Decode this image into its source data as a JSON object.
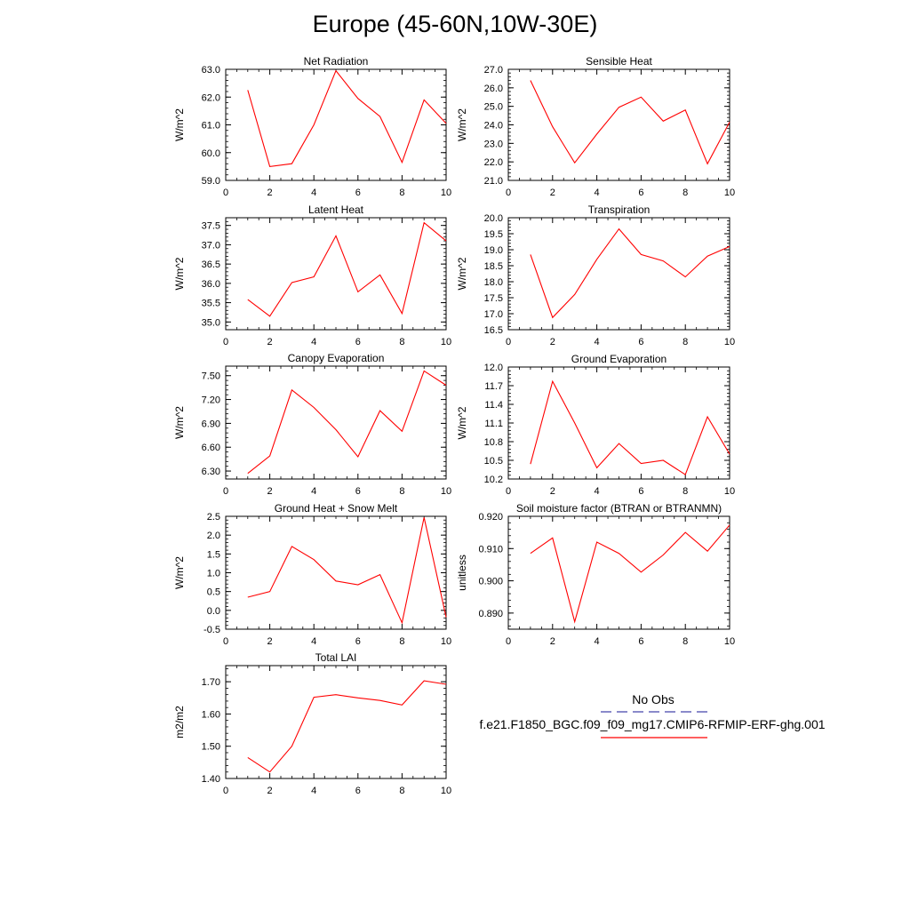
{
  "title": "Europe (45-60N,10W-30E)",
  "legend": {
    "entries": [
      {
        "label": "No Obs",
        "color": "#4444aa",
        "style": "dashed"
      },
      {
        "label": "f.e21.F1850_BGC.f09_f09_mg17.CMIP6-RFMIP-ERF-ghg.001",
        "color": "#ff0000",
        "style": "solid"
      }
    ]
  },
  "chart_data": [
    {
      "type": "line",
      "title": "Net Radiation",
      "ylabel": "W/m^2",
      "xlabel": "",
      "xlim": [
        0,
        10
      ],
      "ylim": [
        59.0,
        63.0
      ],
      "xticks": [
        "0",
        "2",
        "4",
        "6",
        "8",
        "10"
      ],
      "yticks": [
        "59.0",
        "60.0",
        "61.0",
        "62.0",
        "63.0"
      ],
      "x": [
        1,
        2,
        3,
        4,
        5,
        6,
        7,
        8,
        9,
        10
      ],
      "series": [
        {
          "color": "#ff0000",
          "values": [
            62.25,
            59.5,
            59.6,
            61.0,
            62.95,
            61.95,
            61.3,
            59.65,
            61.9,
            61.05
          ]
        }
      ]
    },
    {
      "type": "line",
      "title": "Sensible Heat",
      "ylabel": "W/m^2",
      "xlabel": "",
      "xlim": [
        0,
        10
      ],
      "ylim": [
        21.0,
        27.0
      ],
      "xticks": [
        "0",
        "2",
        "4",
        "6",
        "8",
        "10"
      ],
      "yticks": [
        "21.0",
        "22.0",
        "23.0",
        "24.0",
        "25.0",
        "26.0",
        "27.0"
      ],
      "x": [
        1,
        2,
        3,
        4,
        5,
        6,
        7,
        8,
        9,
        10
      ],
      "series": [
        {
          "color": "#ff0000",
          "values": [
            26.4,
            23.9,
            21.95,
            23.5,
            24.95,
            25.5,
            24.2,
            24.8,
            21.9,
            24.15
          ]
        }
      ]
    },
    {
      "type": "line",
      "title": "Latent Heat",
      "ylabel": "W/m^2",
      "xlabel": "",
      "xlim": [
        0,
        10
      ],
      "ylim": [
        34.8,
        37.7
      ],
      "xticks": [
        "0",
        "2",
        "4",
        "6",
        "8",
        "10"
      ],
      "yticks": [
        "35.0",
        "35.5",
        "36.0",
        "36.5",
        "37.0",
        "37.5"
      ],
      "x": [
        1,
        2,
        3,
        4,
        5,
        6,
        7,
        8,
        9,
        10
      ],
      "series": [
        {
          "color": "#ff0000",
          "values": [
            35.58,
            35.15,
            36.02,
            36.17,
            37.23,
            35.78,
            36.22,
            35.22,
            37.57,
            37.1
          ]
        }
      ]
    },
    {
      "type": "line",
      "title": "Transpiration",
      "ylabel": "W/m^2",
      "xlabel": "",
      "xlim": [
        0,
        10
      ],
      "ylim": [
        16.5,
        20.0
      ],
      "xticks": [
        "0",
        "2",
        "4",
        "6",
        "8",
        "10"
      ],
      "yticks": [
        "16.5",
        "17.0",
        "17.5",
        "18.0",
        "18.5",
        "19.0",
        "19.5",
        "20.0"
      ],
      "x": [
        1,
        2,
        3,
        4,
        5,
        6,
        7,
        8,
        9,
        10
      ],
      "series": [
        {
          "color": "#ff0000",
          "values": [
            18.85,
            16.88,
            17.6,
            18.7,
            19.65,
            18.85,
            18.65,
            18.15,
            18.8,
            19.1
          ]
        }
      ]
    },
    {
      "type": "line",
      "title": "Canopy Evaporation",
      "ylabel": "W/m^2",
      "xlabel": "",
      "xlim": [
        0,
        10
      ],
      "ylim": [
        6.2,
        7.62
      ],
      "xticks": [
        "0",
        "2",
        "4",
        "6",
        "8",
        "10"
      ],
      "yticks": [
        "6.30",
        "6.60",
        "6.90",
        "7.20",
        "7.50"
      ],
      "x": [
        1,
        2,
        3,
        4,
        5,
        6,
        7,
        8,
        9,
        10
      ],
      "series": [
        {
          "color": "#ff0000",
          "values": [
            6.27,
            6.49,
            7.32,
            7.1,
            6.82,
            6.48,
            7.06,
            6.8,
            7.56,
            7.38
          ]
        }
      ]
    },
    {
      "type": "line",
      "title": "Ground Evaporation",
      "ylabel": "W/m^2",
      "xlabel": "",
      "xlim": [
        0,
        10
      ],
      "ylim": [
        10.2,
        12.0
      ],
      "xticks": [
        "0",
        "2",
        "4",
        "6",
        "8",
        "10"
      ],
      "yticks": [
        "10.2",
        "10.5",
        "10.8",
        "11.1",
        "11.4",
        "11.7",
        "12.0"
      ],
      "x": [
        1,
        2,
        3,
        4,
        5,
        6,
        7,
        8,
        9,
        10
      ],
      "series": [
        {
          "color": "#ff0000",
          "values": [
            10.44,
            11.77,
            11.1,
            10.38,
            10.77,
            10.45,
            10.5,
            10.27,
            11.2,
            10.6
          ]
        }
      ]
    },
    {
      "type": "line",
      "title": "Ground Heat + Snow Melt",
      "ylabel": "W/m^2",
      "xlabel": "",
      "xlim": [
        0,
        10
      ],
      "ylim": [
        -0.5,
        2.5
      ],
      "xticks": [
        "0",
        "2",
        "4",
        "6",
        "8",
        "10"
      ],
      "yticks": [
        "-0.5",
        "0.0",
        "0.5",
        "1.0",
        "1.5",
        "2.0",
        "2.5"
      ],
      "x": [
        1,
        2,
        3,
        4,
        5,
        6,
        7,
        8,
        9,
        10
      ],
      "series": [
        {
          "color": "#ff0000",
          "values": [
            0.35,
            0.5,
            1.7,
            1.35,
            0.78,
            0.68,
            0.95,
            -0.33,
            2.47,
            -0.18
          ]
        }
      ]
    },
    {
      "type": "line",
      "title": "Soil moisture factor (BTRAN or BTRANMN)",
      "ylabel": "unitless",
      "xlabel": "",
      "xlim": [
        0,
        10
      ],
      "ylim": [
        0.885,
        0.92
      ],
      "xticks": [
        "0",
        "2",
        "4",
        "6",
        "8",
        "10"
      ],
      "yticks": [
        "0.890",
        "0.900",
        "0.910",
        "0.920"
      ],
      "x": [
        1,
        2,
        3,
        4,
        5,
        6,
        7,
        8,
        9,
        10
      ],
      "series": [
        {
          "color": "#ff0000",
          "values": [
            0.9085,
            0.9133,
            0.8873,
            0.912,
            0.9085,
            0.9027,
            0.908,
            0.915,
            0.9092,
            0.9173
          ]
        }
      ]
    },
    {
      "type": "line",
      "title": "Total LAI",
      "ylabel": "m2/m2",
      "xlabel": "",
      "xlim": [
        0,
        10
      ],
      "ylim": [
        1.4,
        1.75
      ],
      "xticks": [
        "0",
        "2",
        "4",
        "6",
        "8",
        "10"
      ],
      "yticks": [
        "1.40",
        "1.50",
        "1.60",
        "1.70"
      ],
      "x": [
        1,
        2,
        3,
        4,
        5,
        6,
        7,
        8,
        9,
        10
      ],
      "series": [
        {
          "color": "#ff0000",
          "values": [
            1.465,
            1.42,
            1.5,
            1.652,
            1.66,
            1.65,
            1.642,
            1.628,
            1.703,
            1.692
          ]
        }
      ]
    }
  ]
}
